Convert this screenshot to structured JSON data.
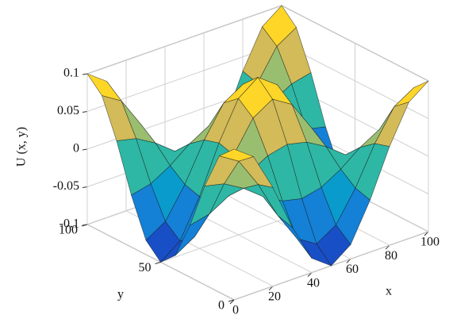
{
  "chart_data": {
    "type": "surface",
    "zlabel": "U (x, y)",
    "xlabel": "x",
    "ylabel": "y",
    "x": [
      0,
      10,
      20,
      30,
      40,
      50,
      60,
      70,
      80,
      90,
      100
    ],
    "y": [
      0,
      10,
      20,
      30,
      40,
      50,
      60,
      70,
      80,
      90,
      100
    ],
    "z": [
      [
        0.1,
        0.081,
        0.031,
        -0.031,
        -0.081,
        -0.1,
        -0.081,
        -0.031,
        0.031,
        0.081,
        0.1
      ],
      [
        0.081,
        0.065,
        0.025,
        -0.025,
        -0.065,
        -0.081,
        -0.065,
        -0.025,
        0.025,
        0.065,
        0.081
      ],
      [
        0.031,
        0.025,
        0.01,
        -0.01,
        -0.025,
        -0.031,
        -0.025,
        -0.01,
        0.01,
        0.025,
        0.031
      ],
      [
        -0.031,
        -0.025,
        -0.01,
        0.01,
        0.025,
        0.031,
        0.025,
        0.01,
        -0.01,
        -0.025,
        -0.031
      ],
      [
        -0.081,
        -0.065,
        -0.025,
        0.025,
        0.065,
        0.081,
        0.065,
        0.025,
        -0.025,
        -0.065,
        -0.081
      ],
      [
        -0.1,
        -0.081,
        -0.031,
        0.031,
        0.081,
        0.1,
        0.081,
        0.031,
        -0.031,
        -0.081,
        -0.1
      ],
      [
        -0.081,
        -0.065,
        -0.025,
        0.025,
        0.065,
        0.081,
        0.065,
        0.025,
        -0.025,
        -0.065,
        -0.081
      ],
      [
        -0.031,
        -0.025,
        -0.01,
        0.01,
        0.025,
        0.031,
        0.025,
        0.01,
        -0.01,
        -0.025,
        -0.031
      ],
      [
        0.031,
        0.025,
        0.01,
        -0.01,
        -0.025,
        -0.031,
        -0.025,
        -0.01,
        0.01,
        0.025,
        0.031
      ],
      [
        0.081,
        0.065,
        0.025,
        -0.025,
        -0.065,
        -0.081,
        -0.065,
        -0.025,
        0.025,
        0.065,
        0.081
      ],
      [
        0.1,
        0.081,
        0.031,
        -0.031,
        -0.081,
        -0.1,
        -0.081,
        -0.031,
        0.031,
        0.081,
        0.1
      ]
    ],
    "xlim": [
      0,
      100
    ],
    "ylim": [
      0,
      100
    ],
    "zlim": [
      -0.1,
      0.1
    ],
    "xticks": [
      0,
      20,
      40,
      60,
      80,
      100
    ],
    "yticks": [
      0,
      50,
      100
    ],
    "zticks": [
      -0.1,
      -0.05,
      0,
      0.05,
      0.1
    ],
    "grid": true,
    "colormap": [
      "#352a87",
      "#0f5cdd",
      "#1481d6",
      "#06a4ca",
      "#2eb7a4",
      "#87bf77",
      "#d1bb59",
      "#fec832",
      "#f9fb0e"
    ]
  }
}
